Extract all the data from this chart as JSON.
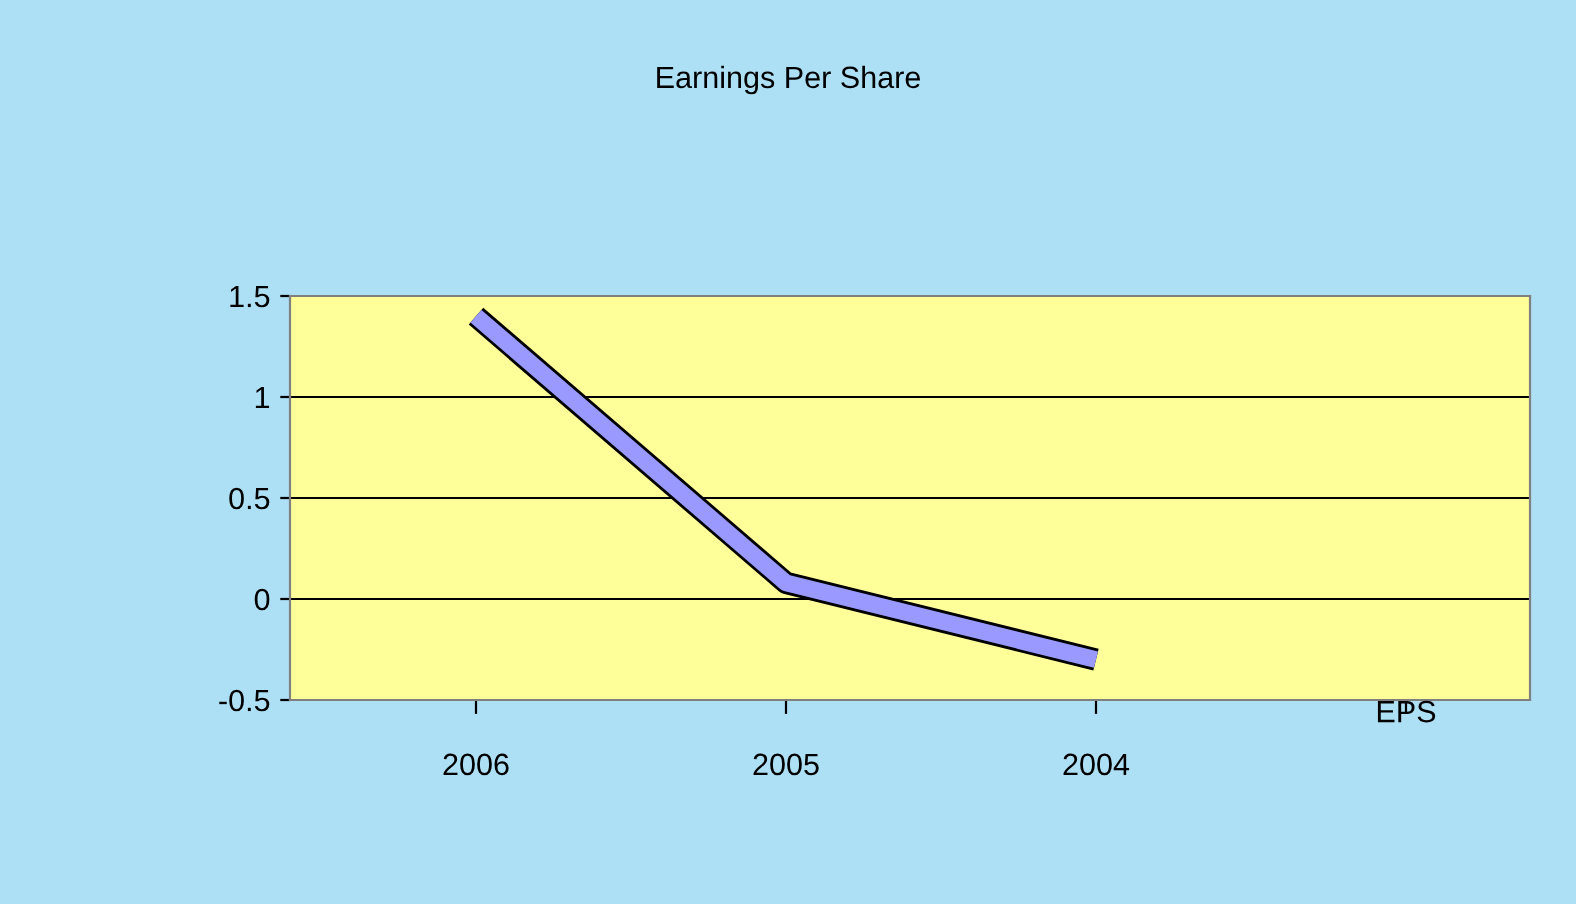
{
  "chart_data": {
    "type": "line",
    "title": "Earnings Per Share",
    "categories": [
      "2006",
      "2005",
      "2004"
    ],
    "series": [
      {
        "name": "EPS",
        "color": "#9999ff",
        "values": [
          1.4,
          0.08,
          -0.3
        ]
      }
    ],
    "ylim": [
      -0.5,
      1.5
    ],
    "yticks": [
      -0.5,
      0,
      0.5,
      1,
      1.5
    ],
    "grid": "y",
    "marker": "none",
    "line_style": "solid"
  }
}
